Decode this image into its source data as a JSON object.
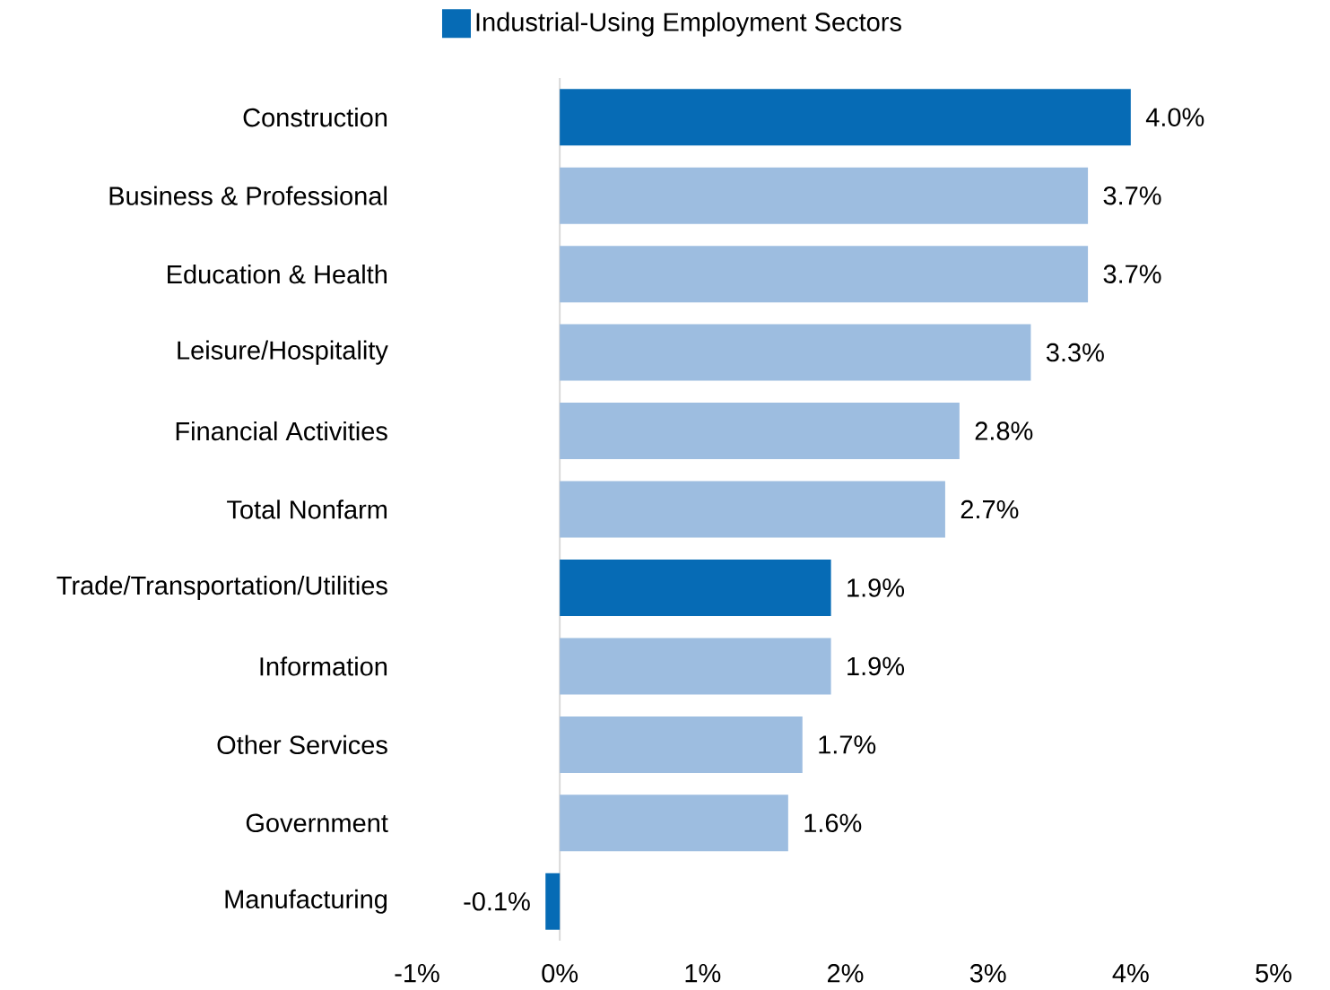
{
  "chart_data": {
    "type": "bar",
    "orientation": "horizontal",
    "stacked": true,
    "categories": [
      "Construction",
      "Business & Professional",
      "Education & Health",
      "Leisure/Hospitality",
      "Financial Activities",
      "Total Nonfarm",
      "Trade/Transportation/Utilities",
      "Information",
      "Other Services",
      "Government",
      "Manufacturing"
    ],
    "series": [
      {
        "name": "Industrial-Using Employment Sectors",
        "color": "#066bb5",
        "values": [
          4.0,
          null,
          null,
          null,
          null,
          null,
          1.9,
          null,
          null,
          null,
          -0.1
        ],
        "value_labels": [
          "4.0%",
          null,
          null,
          null,
          null,
          null,
          "1.9%",
          null,
          null,
          null,
          "-0.1%"
        ]
      },
      {
        "color": "#9dbde0",
        "values": [
          null,
          3.7,
          3.7,
          3.3,
          2.8,
          2.7,
          null,
          1.9,
          1.7,
          1.6,
          null
        ],
        "value_labels": [
          null,
          "3.7%",
          "3.7%",
          "3.3%",
          "2.8%",
          "2.7%",
          null,
          "1.9%",
          "1.7%",
          "1.6%",
          null
        ]
      }
    ],
    "xlim": [
      -1,
      5
    ],
    "xticks": [
      {
        "value": -1,
        "label": "-1%"
      },
      {
        "value": 0,
        "label": "0%"
      },
      {
        "value": 1,
        "label": "1%"
      },
      {
        "value": 2,
        "label": "2%"
      },
      {
        "value": 3,
        "label": "3%"
      },
      {
        "value": 4,
        "label": "4%"
      },
      {
        "value": 5,
        "label": "5%"
      }
    ],
    "legend": "top"
  }
}
